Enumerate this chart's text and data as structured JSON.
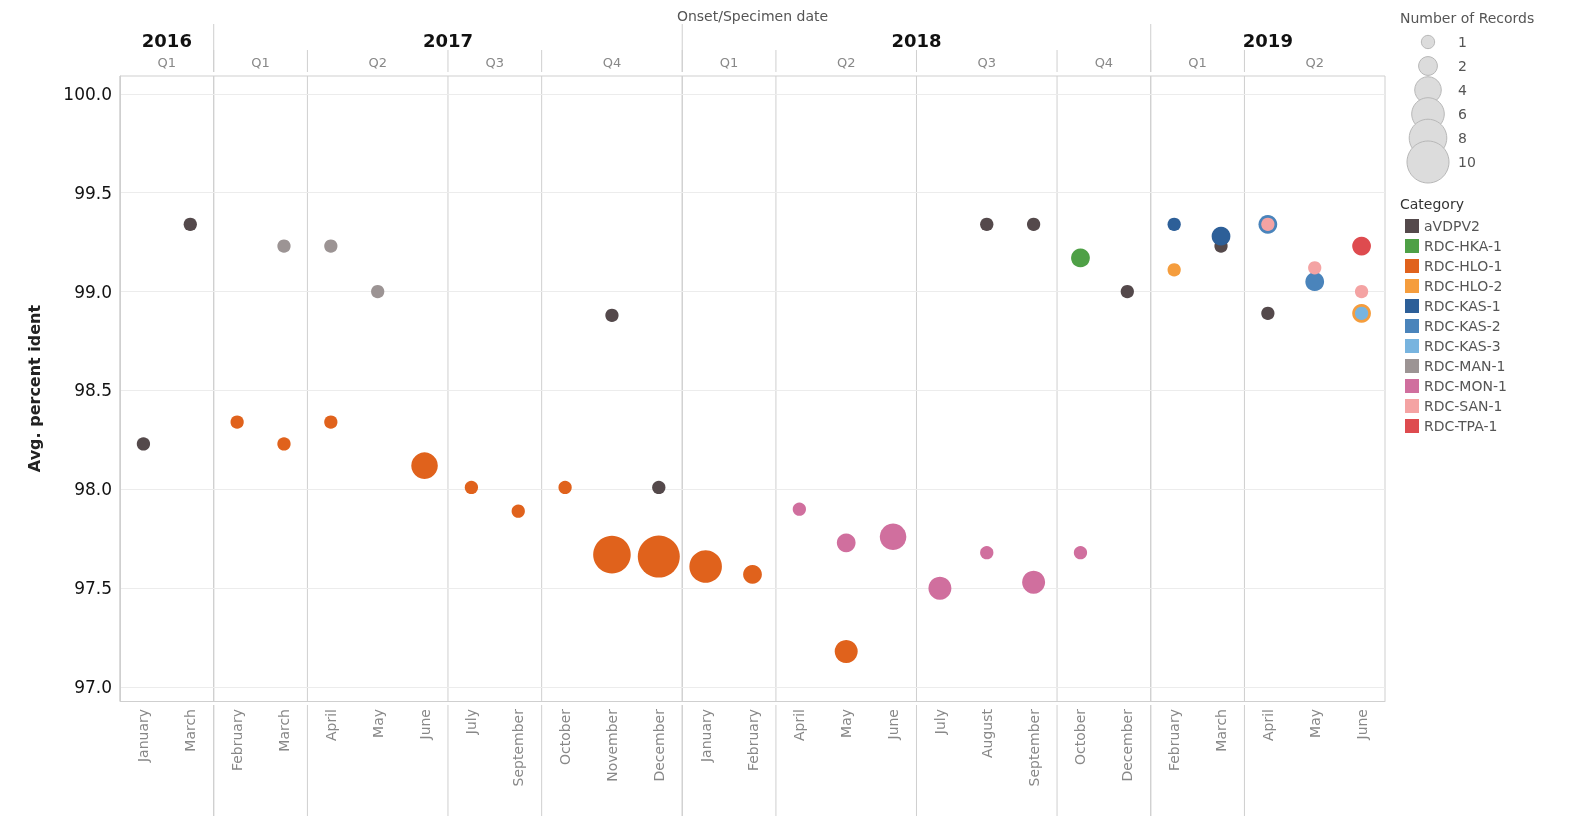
{
  "chart_data": {
    "type": "bubble",
    "xlabel": "Onset/Specimen date",
    "ylabel": "Avg. percent ident",
    "legend_title": "Category",
    "categories": [
      "January",
      "March",
      "February",
      "March",
      "April",
      "May",
      "June",
      "July",
      "September",
      "October",
      "November",
      "December",
      "January",
      "February",
      "April",
      "May",
      "June",
      "July",
      "August",
      "September",
      "October",
      "December",
      "February",
      "March",
      "April",
      "May",
      "June"
    ],
    "ylim": [
      96.93,
      100.09
    ],
    "yticks": [
      {
        "value": 97,
        "label": "97.0"
      },
      97.5,
      {
        "value": 98,
        "label": "98.0"
      },
      98.5,
      {
        "value": 99,
        "label": "99.0"
      },
      99.5,
      {
        "value": 100,
        "label": "100.0"
      }
    ],
    "size_legend": [
      1,
      2,
      4,
      6,
      8,
      10
    ],
    "grid": "y",
    "legend": "right",
    "annotations": [
      "2016",
      "2017",
      "2018",
      "2019",
      "Q1",
      "Q1",
      "Q2",
      "Q3",
      "Q4",
      "Q1",
      "Q2",
      "Q3",
      "Q4",
      "Q1",
      "Q2",
      "Number of Records"
    ],
    "series": [
      {
        "name": "aVDPV2",
        "color": "#54494b",
        "values": [
          98.23,
          99.34,
          null,
          null,
          null,
          null,
          null,
          null,
          null,
          null,
          98.88,
          98.01,
          null,
          null,
          null,
          null,
          null,
          null,
          99.34,
          99.34,
          null,
          99.0,
          null,
          99.23,
          98.89,
          null,
          null
        ],
        "sizes": [
          1,
          1,
          null,
          null,
          null,
          null,
          null,
          null,
          null,
          null,
          1,
          1,
          null,
          null,
          null,
          null,
          null,
          null,
          1,
          1,
          null,
          1,
          null,
          1,
          1,
          null,
          null
        ]
      },
      {
        "name": "RDC-HKA-1",
        "color": "#4ea046",
        "values": [
          null,
          null,
          null,
          null,
          null,
          null,
          null,
          null,
          null,
          null,
          null,
          null,
          null,
          null,
          null,
          null,
          null,
          null,
          null,
          null,
          99.17,
          null,
          null,
          null,
          null,
          null,
          null
        ],
        "sizes": [
          null,
          null,
          null,
          null,
          null,
          null,
          null,
          null,
          null,
          null,
          null,
          null,
          null,
          null,
          null,
          null,
          null,
          null,
          null,
          null,
          2,
          null,
          null,
          null,
          null,
          null,
          null
        ]
      },
      {
        "name": "RDC-HLO-1",
        "color": "#e0621c",
        "values": [
          null,
          null,
          98.34,
          98.23,
          98.34,
          null,
          98.12,
          98.01,
          97.89,
          98.01,
          97.67,
          97.66,
          97.61,
          97.57,
          null,
          97.18,
          null,
          null,
          null,
          null,
          null,
          null,
          null,
          null,
          null,
          null,
          null
        ],
        "sizes": [
          null,
          null,
          1,
          1,
          1,
          null,
          4,
          1,
          1,
          1,
          8,
          10,
          6,
          2,
          null,
          3,
          null,
          null,
          null,
          null,
          null,
          null,
          null,
          null,
          null,
          null,
          null
        ]
      },
      {
        "name": "RDC-HLO-2",
        "color": "#f59d3d",
        "values": [
          null,
          null,
          null,
          null,
          null,
          null,
          null,
          null,
          null,
          null,
          null,
          null,
          null,
          null,
          null,
          null,
          null,
          null,
          null,
          null,
          null,
          null,
          99.11,
          null,
          null,
          null,
          98.89
        ],
        "sizes": [
          null,
          null,
          null,
          null,
          null,
          null,
          null,
          null,
          null,
          null,
          null,
          null,
          null,
          null,
          null,
          null,
          null,
          null,
          null,
          null,
          null,
          null,
          1,
          null,
          null,
          null,
          2
        ]
      },
      {
        "name": "RDC-KAS-1",
        "color": "#2d5f98",
        "values": [
          null,
          null,
          null,
          null,
          null,
          null,
          null,
          null,
          null,
          null,
          null,
          null,
          null,
          null,
          null,
          null,
          null,
          null,
          null,
          null,
          null,
          null,
          99.34,
          99.28,
          null,
          null,
          null
        ],
        "sizes": [
          null,
          null,
          null,
          null,
          null,
          null,
          null,
          null,
          null,
          null,
          null,
          null,
          null,
          null,
          null,
          null,
          null,
          null,
          null,
          null,
          null,
          null,
          1,
          2,
          null,
          null,
          null
        ]
      },
      {
        "name": "RDC-KAS-2",
        "color": "#4a84bb",
        "values": [
          null,
          null,
          null,
          null,
          null,
          null,
          null,
          null,
          null,
          null,
          null,
          null,
          null,
          null,
          null,
          null,
          null,
          null,
          null,
          null,
          null,
          null,
          null,
          null,
          99.34,
          99.05,
          null
        ],
        "sizes": [
          null,
          null,
          null,
          null,
          null,
          null,
          null,
          null,
          null,
          null,
          null,
          null,
          null,
          null,
          null,
          null,
          null,
          null,
          null,
          null,
          null,
          null,
          null,
          null,
          2,
          2,
          null
        ]
      },
      {
        "name": "RDC-KAS-3",
        "color": "#78b4df",
        "values": [
          null,
          null,
          null,
          null,
          null,
          null,
          null,
          null,
          null,
          null,
          null,
          null,
          null,
          null,
          null,
          null,
          null,
          null,
          null,
          null,
          null,
          null,
          null,
          null,
          null,
          null,
          98.89
        ],
        "sizes": [
          null,
          null,
          null,
          null,
          null,
          null,
          null,
          null,
          null,
          null,
          null,
          null,
          null,
          null,
          null,
          null,
          null,
          null,
          null,
          null,
          null,
          null,
          null,
          null,
          null,
          null,
          1
        ]
      },
      {
        "name": "RDC-MAN-1",
        "color": "#9c9494",
        "values": [
          null,
          null,
          null,
          99.23,
          99.23,
          99.0,
          null,
          null,
          null,
          null,
          null,
          null,
          null,
          null,
          null,
          null,
          null,
          null,
          null,
          null,
          null,
          null,
          null,
          null,
          null,
          null,
          null
        ],
        "sizes": [
          null,
          null,
          null,
          1,
          1,
          1,
          null,
          null,
          null,
          null,
          null,
          null,
          null,
          null,
          null,
          null,
          null,
          null,
          null,
          null,
          null,
          null,
          null,
          null,
          null,
          null,
          null
        ]
      },
      {
        "name": "RDC-MON-1",
        "color": "#d06f9e",
        "values": [
          null,
          null,
          null,
          null,
          null,
          null,
          null,
          null,
          null,
          null,
          null,
          null,
          null,
          null,
          97.9,
          97.73,
          97.76,
          97.5,
          97.68,
          97.53,
          97.68,
          null,
          null,
          null,
          null,
          null,
          null
        ],
        "sizes": [
          null,
          null,
          null,
          null,
          null,
          null,
          null,
          null,
          null,
          null,
          null,
          null,
          null,
          null,
          1,
          2,
          4,
          3,
          1,
          3,
          1,
          null,
          null,
          null,
          null,
          null,
          null
        ]
      },
      {
        "name": "RDC-SAN-1",
        "color": "#f4a3a3",
        "values": [
          null,
          null,
          null,
          null,
          null,
          null,
          null,
          null,
          null,
          null,
          null,
          null,
          null,
          null,
          null,
          null,
          null,
          null,
          null,
          null,
          null,
          null,
          null,
          null,
          99.34,
          99.12,
          99.0
        ],
        "sizes": [
          null,
          null,
          null,
          null,
          null,
          null,
          null,
          null,
          null,
          null,
          null,
          null,
          null,
          null,
          null,
          null,
          null,
          null,
          null,
          null,
          null,
          null,
          null,
          null,
          1,
          1,
          1
        ]
      },
      {
        "name": "RDC-TPA-1",
        "color": "#de4b4f",
        "values": [
          null,
          null,
          null,
          null,
          null,
          null,
          null,
          null,
          null,
          null,
          null,
          null,
          null,
          null,
          null,
          null,
          null,
          null,
          null,
          null,
          null,
          null,
          null,
          null,
          null,
          null,
          99.23
        ],
        "sizes": [
          null,
          null,
          null,
          null,
          null,
          null,
          null,
          null,
          null,
          null,
          null,
          null,
          null,
          null,
          null,
          null,
          null,
          null,
          null,
          null,
          null,
          null,
          null,
          null,
          null,
          null,
          2
        ]
      }
    ]
  }
}
